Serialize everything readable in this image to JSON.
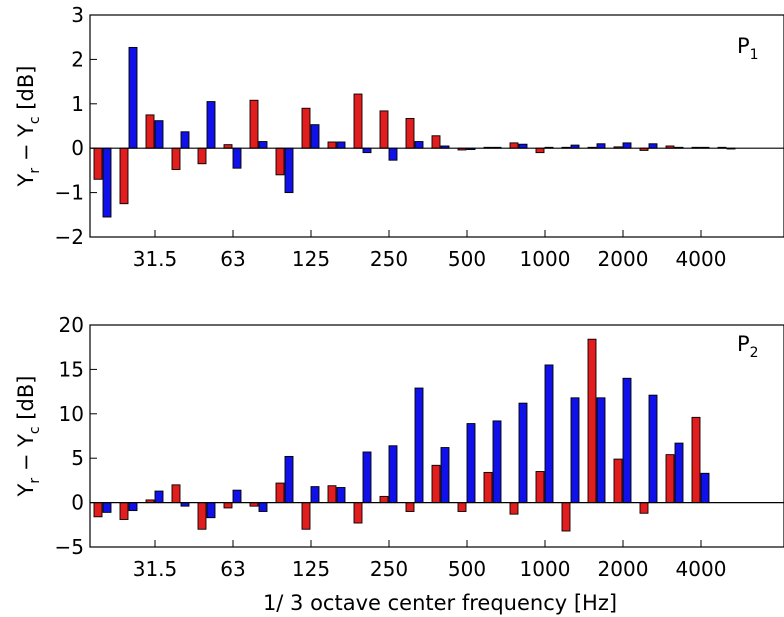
{
  "chart_data": [
    {
      "type": "bar",
      "panel_label": "P",
      "panel_sub": "1",
      "ylabel_main": "Y",
      "ylabel_sub1": "r",
      "ylabel_mid": " − Y",
      "ylabel_sub2": "c",
      "ylabel_unit": " [dB]",
      "xlabel": "",
      "ylim": [
        -2,
        3
      ],
      "yticks": [
        -2,
        -1,
        0,
        1,
        2,
        3
      ],
      "xtick_labels": [
        "31.5",
        "63",
        "125",
        "250",
        "500",
        "1000",
        "2000",
        "4000"
      ],
      "xtick_band_index": [
        2,
        5,
        8,
        11,
        14,
        17,
        20,
        23
      ],
      "grid": false,
      "series": [
        {
          "color": "#e11d1d",
          "values": [
            -0.7,
            -1.25,
            0.75,
            -0.48,
            -0.35,
            0.08,
            1.08,
            -0.6,
            0.9,
            0.14,
            1.22,
            0.84,
            0.67,
            0.28,
            -0.04,
            0.02,
            0.12,
            -0.1,
            0.02,
            0.02,
            0.03,
            -0.05,
            0.05,
            0.02,
            0.02
          ]
        },
        {
          "color": "#1010e8",
          "values": [
            -1.55,
            2.27,
            0.62,
            0.37,
            1.05,
            -0.45,
            0.15,
            -1.0,
            0.53,
            0.14,
            -0.1,
            -0.27,
            0.15,
            0.05,
            -0.03,
            0.02,
            0.09,
            0.02,
            0.07,
            0.1,
            0.12,
            0.1,
            0.02,
            0.02,
            -0.01
          ]
        }
      ]
    },
    {
      "type": "bar",
      "panel_label": "P",
      "panel_sub": "2",
      "ylabel_main": "Y",
      "ylabel_sub1": "r",
      "ylabel_mid": " − Y",
      "ylabel_sub2": "c",
      "ylabel_unit": " [dB]",
      "xlabel": "1/ 3 octave center frequency [Hz]",
      "ylim": [
        -5,
        20
      ],
      "yticks": [
        -5,
        0,
        5,
        10,
        15,
        20
      ],
      "xtick_labels": [
        "31.5",
        "63",
        "125",
        "250",
        "500",
        "1000",
        "2000",
        "4000"
      ],
      "xtick_band_index": [
        2,
        5,
        8,
        11,
        14,
        17,
        20,
        23
      ],
      "grid": false,
      "series": [
        {
          "color": "#e11d1d",
          "values": [
            -1.6,
            -1.9,
            0.3,
            2.0,
            -3.0,
            -0.6,
            -0.4,
            2.2,
            -3.0,
            1.9,
            -2.3,
            0.7,
            -1.0,
            4.2,
            -1.0,
            3.4,
            -1.3,
            3.5,
            -3.2,
            18.4,
            4.9,
            -1.2,
            5.4,
            9.6,
            0.0
          ]
        },
        {
          "color": "#1010e8",
          "values": [
            -1.1,
            -0.9,
            1.3,
            -0.4,
            -1.7,
            1.4,
            -1.0,
            5.2,
            1.8,
            1.7,
            5.7,
            6.4,
            12.9,
            6.2,
            8.9,
            9.2,
            11.2,
            15.5,
            11.8,
            11.8,
            14.0,
            12.1,
            6.7,
            3.3,
            0.0
          ]
        }
      ]
    }
  ]
}
